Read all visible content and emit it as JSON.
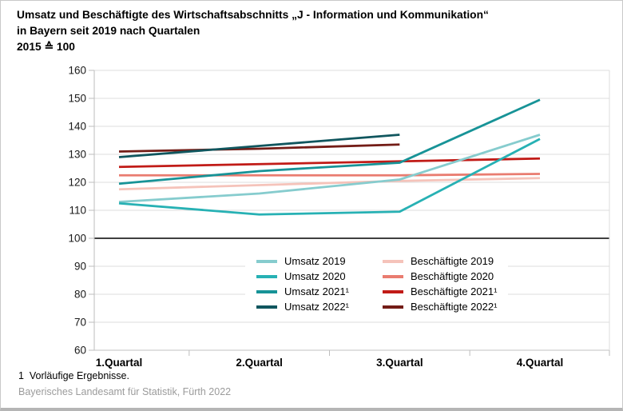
{
  "title": {
    "line1": "Umsatz und Beschäftigte des Wirtschaftsabschnitts „J - Information und Kommunikation“",
    "line2": "in Bayern seit 2019 nach Quartalen",
    "line3": "2015 ≙ 100"
  },
  "footer": {
    "footnote": "1  Vorläufige Ergebnisse.",
    "source": "Bayerisches Landesamt für Statistik, Fürth 2022"
  },
  "colors": {
    "grid": "#dcdcdc",
    "axis": "#bdbdbd",
    "baseline": "#3f3f3f",
    "axis_text": "#1a1a1a"
  },
  "chart_data": {
    "type": "line",
    "categories": [
      "1.Quartal",
      "2.Quartal",
      "3.Quartal",
      "4.Quartal"
    ],
    "ylim": [
      60,
      160
    ],
    "ytick_step": 10,
    "baseline": 100,
    "grid": true,
    "legend_position": "inside-bottom-center",
    "series": [
      {
        "name": "Umsatz 2019",
        "color": "#86ccce",
        "values": [
          113,
          116,
          121,
          137
        ]
      },
      {
        "name": "Umsatz 2020",
        "color": "#27b1b4",
        "values": [
          112.5,
          108.5,
          109.5,
          135.5
        ]
      },
      {
        "name": "Umsatz 2021¹",
        "color": "#179397",
        "values": [
          119.5,
          124,
          127,
          149.5
        ]
      },
      {
        "name": "Umsatz 2022¹",
        "color": "#10565e",
        "values": [
          129,
          133,
          137,
          null
        ]
      },
      {
        "name": "Beschäftigte 2019",
        "color": "#f5c3ba",
        "values": [
          117.5,
          119,
          120.5,
          121.5
        ]
      },
      {
        "name": "Beschäftigte 2020",
        "color": "#e97c70",
        "values": [
          122.5,
          122.5,
          122.5,
          123
        ]
      },
      {
        "name": "Beschäftigte 2021¹",
        "color": "#c11b17",
        "values": [
          125.5,
          126.5,
          127.5,
          128.5
        ]
      },
      {
        "name": "Beschäftigte 2022¹",
        "color": "#731c16",
        "values": [
          131,
          132,
          133.5,
          null
        ]
      }
    ]
  }
}
